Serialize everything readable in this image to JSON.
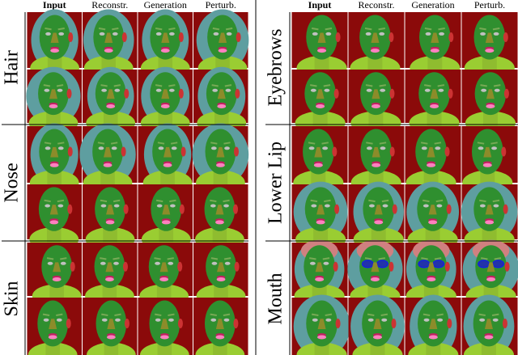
{
  "left": {
    "headers": [
      "Input",
      "Reconstr.",
      "Generation",
      "Perturb."
    ],
    "groups": [
      "Hair",
      "Nose",
      "Skin"
    ]
  },
  "right": {
    "headers": [
      "Input",
      "Reconstr.",
      "Generation",
      "Perturb."
    ],
    "groups": [
      "Eyebrows",
      "Lower Lip",
      "Mouth"
    ]
  }
}
